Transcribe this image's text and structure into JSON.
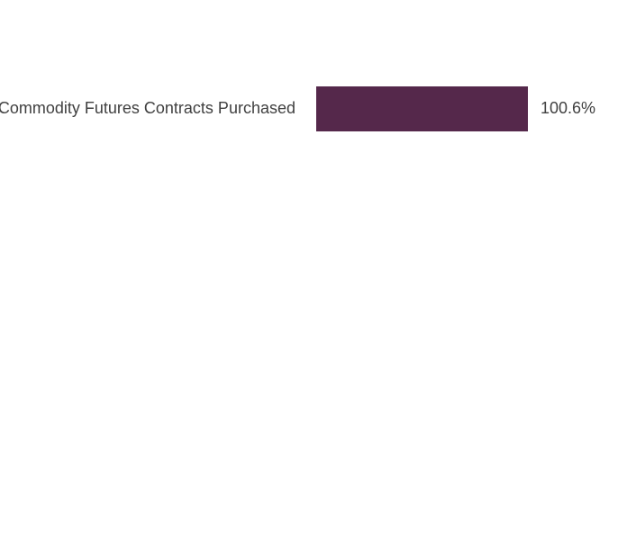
{
  "chart_data": {
    "type": "barh",
    "categories": [
      "Commodity Futures Contracts Purchased"
    ],
    "values": [
      100.6
    ],
    "value_labels": [
      "100.6%"
    ],
    "color": "#55284b"
  }
}
